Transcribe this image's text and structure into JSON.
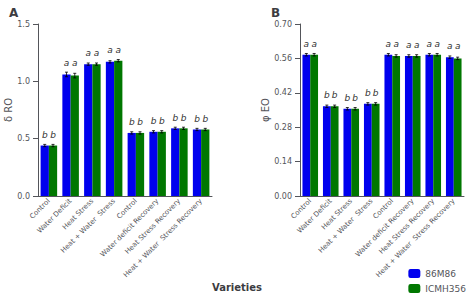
{
  "chart_data": [
    {
      "type": "bar",
      "title": "A",
      "ylabel": "δ RO",
      "xlabel": "Varieties",
      "categories": [
        "Control",
        "Water Deficit",
        "Heat Stress",
        "Heat + Water  Stress",
        "Control",
        "Water deficit Recovery",
        "Heat Stress Recovery",
        "Heat + Water  Stress Recovery"
      ],
      "series": [
        {
          "name": "86M86",
          "color": "#0000EE",
          "values": [
            0.44,
            1.06,
            1.15,
            1.17,
            0.55,
            0.56,
            0.59,
            0.58
          ],
          "errors": [
            0.01,
            0.02,
            0.01,
            0.01,
            0.01,
            0.01,
            0.01,
            0.01
          ],
          "annotations": [
            "b",
            "a",
            "a",
            "a",
            "b",
            "b",
            "b",
            "b"
          ]
        },
        {
          "name": "ICMH356",
          "color": "#007700",
          "values": [
            0.44,
            1.05,
            1.15,
            1.18,
            0.55,
            0.56,
            0.59,
            0.58
          ],
          "errors": [
            0.01,
            0.02,
            0.01,
            0.01,
            0.01,
            0.01,
            0.01,
            0.01
          ],
          "annotations": [
            "b",
            "a",
            "a",
            "a",
            "b",
            "b",
            "b",
            "b"
          ]
        }
      ],
      "ylim": [
        0.0,
        1.5
      ],
      "yticks": [
        {
          "value": 0,
          "label": "0.0"
        },
        0.5,
        {
          "value": 1,
          "label": "1.0"
        },
        1.5
      ],
      "grid": false,
      "legend": "lower right"
    },
    {
      "type": "bar",
      "title": "B",
      "ylabel": "φ EO",
      "xlabel": "Varieties",
      "categories": [
        "Control",
        "Water Deficit",
        "Heat Stress",
        "Heat + Water  Stress",
        "Control",
        "Water deficit Recovery",
        "Heat Stress Recovery",
        "Heat + Water  Stress Recovery"
      ],
      "series": [
        {
          "name": "86M86",
          "color": "#0000EE",
          "values": [
            0.575,
            0.365,
            0.355,
            0.375,
            0.575,
            0.57,
            0.575,
            0.565
          ],
          "errors": [
            0.005,
            0.005,
            0.005,
            0.005,
            0.005,
            0.005,
            0.005,
            0.005
          ],
          "annotations": [
            "a",
            "b",
            "b",
            "b",
            "a",
            "a",
            "a",
            "a"
          ]
        },
        {
          "name": "ICMH356",
          "color": "#007700",
          "values": [
            0.575,
            0.365,
            0.355,
            0.375,
            0.57,
            0.57,
            0.575,
            0.56
          ],
          "errors": [
            0.005,
            0.005,
            0.005,
            0.005,
            0.005,
            0.005,
            0.005,
            0.005
          ],
          "annotations": [
            "a",
            "b",
            "b",
            "b",
            "a",
            "a",
            "a",
            "a"
          ]
        }
      ],
      "ylim": [
        0.0,
        0.7
      ],
      "yticks": [
        {
          "value": 0,
          "label": "0.00"
        },
        0.14,
        0.28,
        0.42,
        0.56,
        {
          "value": 0.7,
          "label": "0.70"
        }
      ],
      "grid": false,
      "legend": "lower right"
    }
  ]
}
